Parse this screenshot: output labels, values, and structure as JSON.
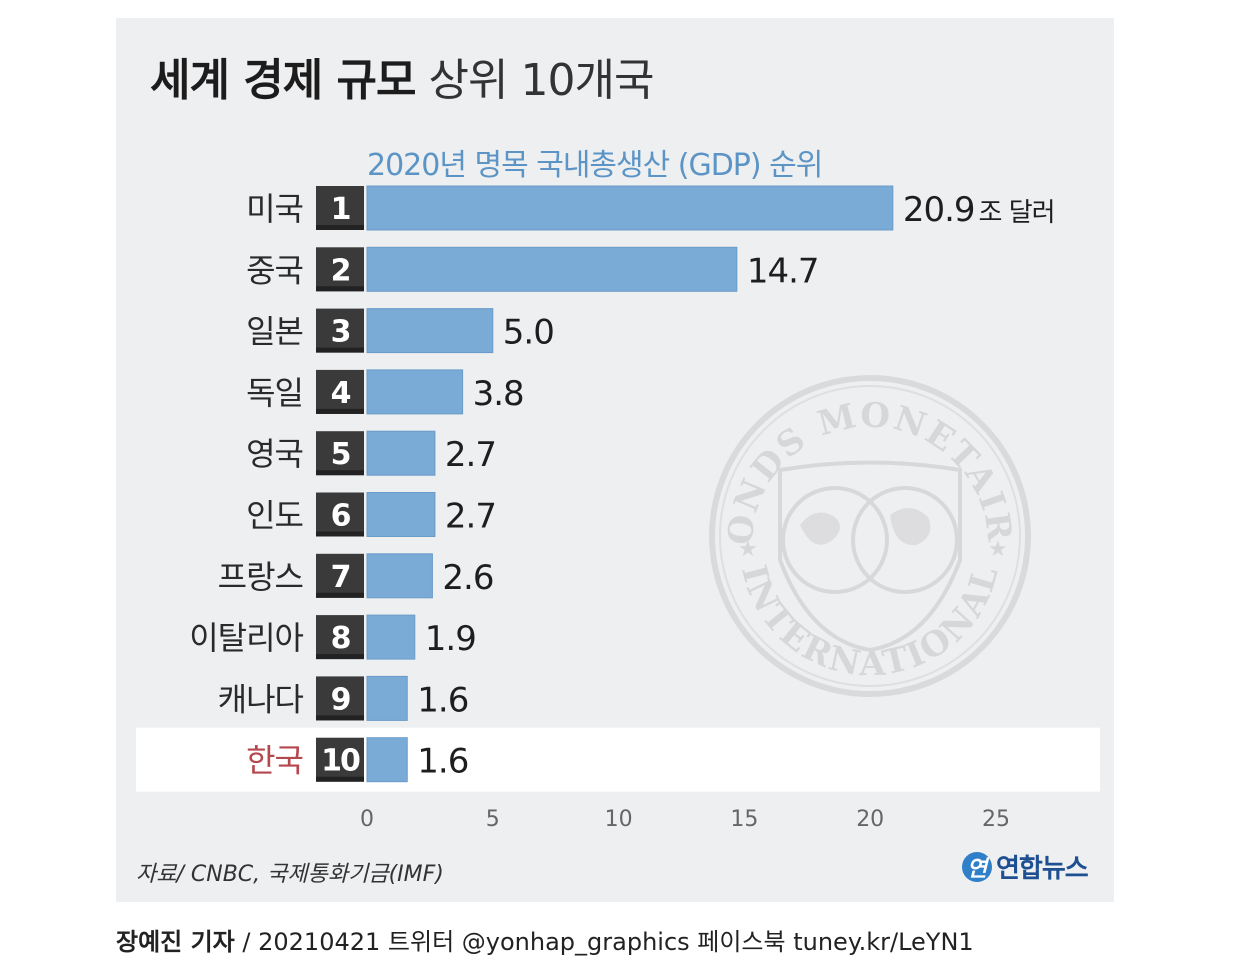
{
  "header": {
    "title_bold": "세계 경제 규모",
    "title_light": "상위 10개국"
  },
  "chart_data": {
    "type": "bar",
    "orientation": "horizontal",
    "title": "세계 경제 규모 상위 10개국",
    "subtitle": "2020년 명목 국내총생산 (GDP) 순위",
    "categories": [
      "미국",
      "중국",
      "일본",
      "독일",
      "영국",
      "인도",
      "프랑스",
      "이탈리아",
      "캐나다",
      "한국"
    ],
    "ranks": [
      "1",
      "2",
      "3",
      "4",
      "5",
      "6",
      "7",
      "8",
      "9",
      "10"
    ],
    "values": [
      20.9,
      14.7,
      5.0,
      3.8,
      2.7,
      2.7,
      2.6,
      1.9,
      1.6,
      1.6
    ],
    "value_labels": [
      "20.9",
      "14.7",
      "5.0",
      "3.8",
      "2.7",
      "2.7",
      "2.6",
      "1.9",
      "1.6",
      "1.6"
    ],
    "first_value_unit": "조 달러",
    "highlight_category": "한국",
    "xlim": [
      0,
      25
    ],
    "xticks": [
      "0",
      "5",
      "10",
      "15",
      "20",
      "25"
    ],
    "xlabel": "",
    "ylabel": "",
    "grid": false,
    "colors": {
      "bar": "#7aaad6",
      "rank_box": "#3a3a3a",
      "highlight_label": "#b5474f",
      "highlight_row": "#ffffff"
    }
  },
  "watermark": {
    "top_text": "FONDS MONETAIRE",
    "bottom_text": "INTERNATIONAL"
  },
  "footer": {
    "source": "자료/ CNBC, 국제통화기금(IMF)",
    "logo_mark": "연",
    "logo_text": "연합뉴스",
    "credit_bold": "장예진 기자",
    "credit_rest": "/ 20210421 트위터 @yonhap_graphics  페이스북 tuney.kr/LeYN1"
  }
}
